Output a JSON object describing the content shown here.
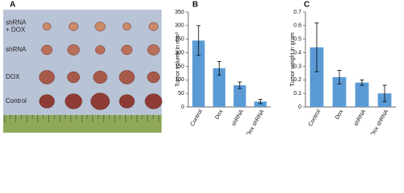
{
  "photo": {
    "label": "A",
    "rows": [
      "shRNA\n+ DOX",
      "shRNA",
      "DOX",
      "Control"
    ]
  },
  "chart_data": [
    {
      "type": "bar",
      "label": "B",
      "y_label": "Tumor volume in mm³",
      "categories": [
        "Control",
        "Dox",
        "shRNA",
        "Dox shRNA"
      ],
      "values": [
        245,
        143,
        80,
        20
      ],
      "errors": [
        55,
        25,
        12,
        8
      ],
      "color": "#5b9bd5",
      "ylim": [
        0,
        350
      ],
      "yticks": [
        0,
        50,
        100,
        150,
        200,
        250,
        300,
        350
      ]
    },
    {
      "type": "bar",
      "label": "C",
      "y_label": "Tumor weight in gram",
      "categories": [
        "Control",
        "Dox",
        "shRNA",
        "Dox shRNA"
      ],
      "values": [
        0.44,
        0.22,
        0.18,
        0.1
      ],
      "errors": [
        0.18,
        0.05,
        0.02,
        0.06
      ],
      "color": "#5b9bd5",
      "ylim": [
        0,
        0.7
      ],
      "yticks": [
        0,
        0.1,
        0.2,
        0.3,
        0.4,
        0.5,
        0.6,
        0.7
      ]
    }
  ]
}
